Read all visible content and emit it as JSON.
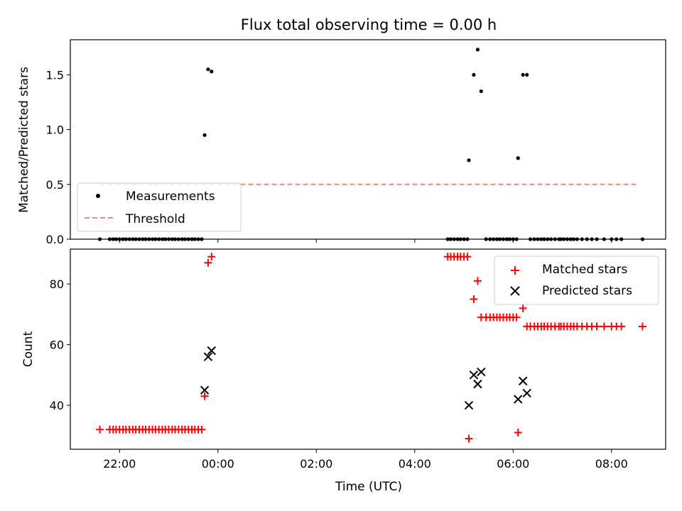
{
  "chart_data": {
    "type": "scatter",
    "title": "Flux total observing time = 0.00 h",
    "xlabel": "Time (UTC)",
    "x_axis": {
      "unit": "hours since 00:00 UTC",
      "range": [
        -3.0,
        9.1
      ],
      "ticks": [
        {
          "value": -2,
          "label": "22:00"
        },
        {
          "value": 0,
          "label": "00:00"
        },
        {
          "value": 2,
          "label": "02:00"
        },
        {
          "value": 4,
          "label": "04:00"
        },
        {
          "value": 6,
          "label": "06:00"
        },
        {
          "value": 8,
          "label": "08:00"
        }
      ]
    },
    "top": {
      "ylabel": "Matched/Predicted stars",
      "ylim": [
        0,
        1.82
      ],
      "yticks": [
        {
          "value": 0,
          "label": "0.0"
        },
        {
          "value": 0.5,
          "label": "0.5"
        },
        {
          "value": 1.0,
          "label": "1.0"
        },
        {
          "value": 1.5,
          "label": "1.5"
        }
      ],
      "threshold": {
        "name": "Threshold",
        "value": 0.5,
        "x_start": -2.4,
        "x_end": 8.55,
        "color": "#ff7f7f"
      },
      "series": [
        {
          "name": "Measurements",
          "color": "#000000",
          "points": [
            [
              -2.4,
              0
            ],
            [
              -2.2,
              0
            ],
            [
              -2.13,
              0
            ],
            [
              -2.07,
              0
            ],
            [
              -2.0,
              0
            ],
            [
              -1.93,
              0
            ],
            [
              -1.87,
              0
            ],
            [
              -1.8,
              0
            ],
            [
              -1.73,
              0
            ],
            [
              -1.67,
              0
            ],
            [
              -1.6,
              0
            ],
            [
              -1.53,
              0
            ],
            [
              -1.47,
              0
            ],
            [
              -1.4,
              0
            ],
            [
              -1.33,
              0
            ],
            [
              -1.27,
              0
            ],
            [
              -1.2,
              0
            ],
            [
              -1.13,
              0
            ],
            [
              -1.07,
              0
            ],
            [
              -1.0,
              0
            ],
            [
              -0.93,
              0
            ],
            [
              -0.87,
              0
            ],
            [
              -0.8,
              0
            ],
            [
              -0.73,
              0
            ],
            [
              -0.67,
              0
            ],
            [
              -0.6,
              0
            ],
            [
              -0.53,
              0
            ],
            [
              -0.47,
              0
            ],
            [
              -0.4,
              0
            ],
            [
              -0.33,
              0
            ],
            [
              -0.27,
              0.95
            ],
            [
              -0.2,
              1.55
            ],
            [
              -0.13,
              1.53
            ],
            [
              4.67,
              0
            ],
            [
              4.73,
              0
            ],
            [
              4.8,
              0
            ],
            [
              4.87,
              0
            ],
            [
              4.93,
              0
            ],
            [
              5.0,
              0
            ],
            [
              5.07,
              0
            ],
            [
              5.1,
              0.72
            ],
            [
              5.2,
              1.5
            ],
            [
              5.28,
              1.73
            ],
            [
              5.35,
              1.35
            ],
            [
              5.45,
              0
            ],
            [
              5.53,
              0
            ],
            [
              5.6,
              0
            ],
            [
              5.67,
              0
            ],
            [
              5.73,
              0
            ],
            [
              5.8,
              0
            ],
            [
              5.87,
              0
            ],
            [
              5.93,
              0
            ],
            [
              6.0,
              0
            ],
            [
              6.07,
              0
            ],
            [
              6.1,
              0.74
            ],
            [
              6.2,
              1.5
            ],
            [
              6.28,
              1.5
            ],
            [
              6.35,
              0
            ],
            [
              6.43,
              0
            ],
            [
              6.5,
              0
            ],
            [
              6.57,
              0
            ],
            [
              6.63,
              0
            ],
            [
              6.7,
              0
            ],
            [
              6.77,
              0
            ],
            [
              6.85,
              0
            ],
            [
              6.93,
              0
            ],
            [
              6.97,
              0
            ],
            [
              7.03,
              0
            ],
            [
              7.1,
              0
            ],
            [
              7.17,
              0
            ],
            [
              7.23,
              0
            ],
            [
              7.3,
              0
            ],
            [
              7.4,
              0
            ],
            [
              7.5,
              0
            ],
            [
              7.6,
              0
            ],
            [
              7.7,
              0
            ],
            [
              7.85,
              0
            ],
            [
              8.0,
              0
            ],
            [
              8.1,
              0
            ],
            [
              8.2,
              0
            ],
            [
              8.63,
              0
            ]
          ]
        }
      ],
      "legend": {
        "placement": "lower-left",
        "entries": [
          "Measurements",
          "Threshold"
        ]
      }
    },
    "bottom": {
      "ylabel": "Count",
      "ylim": [
        25.5,
        91.5
      ],
      "yticks": [
        {
          "value": 40,
          "label": "40"
        },
        {
          "value": 60,
          "label": "60"
        },
        {
          "value": 80,
          "label": "80"
        }
      ],
      "series": [
        {
          "name": "Matched stars",
          "marker": "+",
          "color": "#ff0000",
          "points": [
            [
              -2.4,
              32
            ],
            [
              -2.2,
              32
            ],
            [
              -2.13,
              32
            ],
            [
              -2.07,
              32
            ],
            [
              -2.0,
              32
            ],
            [
              -1.93,
              32
            ],
            [
              -1.87,
              32
            ],
            [
              -1.8,
              32
            ],
            [
              -1.73,
              32
            ],
            [
              -1.67,
              32
            ],
            [
              -1.6,
              32
            ],
            [
              -1.53,
              32
            ],
            [
              -1.47,
              32
            ],
            [
              -1.4,
              32
            ],
            [
              -1.33,
              32
            ],
            [
              -1.27,
              32
            ],
            [
              -1.2,
              32
            ],
            [
              -1.13,
              32
            ],
            [
              -1.07,
              32
            ],
            [
              -1.0,
              32
            ],
            [
              -0.93,
              32
            ],
            [
              -0.87,
              32
            ],
            [
              -0.8,
              32
            ],
            [
              -0.73,
              32
            ],
            [
              -0.67,
              32
            ],
            [
              -0.6,
              32
            ],
            [
              -0.53,
              32
            ],
            [
              -0.47,
              32
            ],
            [
              -0.4,
              32
            ],
            [
              -0.33,
              32
            ],
            [
              -0.27,
              43
            ],
            [
              -0.2,
              87
            ],
            [
              -0.13,
              89
            ],
            [
              4.67,
              89
            ],
            [
              4.73,
              89
            ],
            [
              4.8,
              89
            ],
            [
              4.87,
              89
            ],
            [
              4.93,
              89
            ],
            [
              5.0,
              89
            ],
            [
              5.07,
              89
            ],
            [
              5.1,
              29
            ],
            [
              5.2,
              75
            ],
            [
              5.28,
              81
            ],
            [
              5.35,
              69
            ],
            [
              5.45,
              69
            ],
            [
              5.53,
              69
            ],
            [
              5.6,
              69
            ],
            [
              5.67,
              69
            ],
            [
              5.73,
              69
            ],
            [
              5.8,
              69
            ],
            [
              5.87,
              69
            ],
            [
              5.93,
              69
            ],
            [
              6.0,
              69
            ],
            [
              6.07,
              69
            ],
            [
              6.1,
              31
            ],
            [
              6.2,
              72
            ],
            [
              6.28,
              66
            ],
            [
              6.35,
              66
            ],
            [
              6.43,
              66
            ],
            [
              6.5,
              66
            ],
            [
              6.57,
              66
            ],
            [
              6.63,
              66
            ],
            [
              6.7,
              66
            ],
            [
              6.77,
              66
            ],
            [
              6.85,
              66
            ],
            [
              6.93,
              66
            ],
            [
              6.97,
              66
            ],
            [
              7.03,
              66
            ],
            [
              7.1,
              66
            ],
            [
              7.17,
              66
            ],
            [
              7.23,
              66
            ],
            [
              7.3,
              66
            ],
            [
              7.4,
              66
            ],
            [
              7.5,
              66
            ],
            [
              7.6,
              66
            ],
            [
              7.7,
              66
            ],
            [
              7.85,
              66
            ],
            [
              8.0,
              66
            ],
            [
              8.1,
              66
            ],
            [
              8.2,
              66
            ],
            [
              8.63,
              66
            ]
          ]
        },
        {
          "name": "Predicted stars",
          "marker": "x",
          "color": "#000000",
          "points": [
            [
              -0.27,
              45
            ],
            [
              -0.2,
              56
            ],
            [
              -0.13,
              58
            ],
            [
              5.1,
              40
            ],
            [
              5.2,
              50
            ],
            [
              5.28,
              47
            ],
            [
              5.35,
              51
            ],
            [
              6.1,
              42
            ],
            [
              6.2,
              48
            ],
            [
              6.28,
              44
            ]
          ]
        }
      ],
      "legend": {
        "placement": "upper-right",
        "entries": [
          "Matched stars",
          "Predicted stars"
        ]
      }
    },
    "grid": false
  }
}
